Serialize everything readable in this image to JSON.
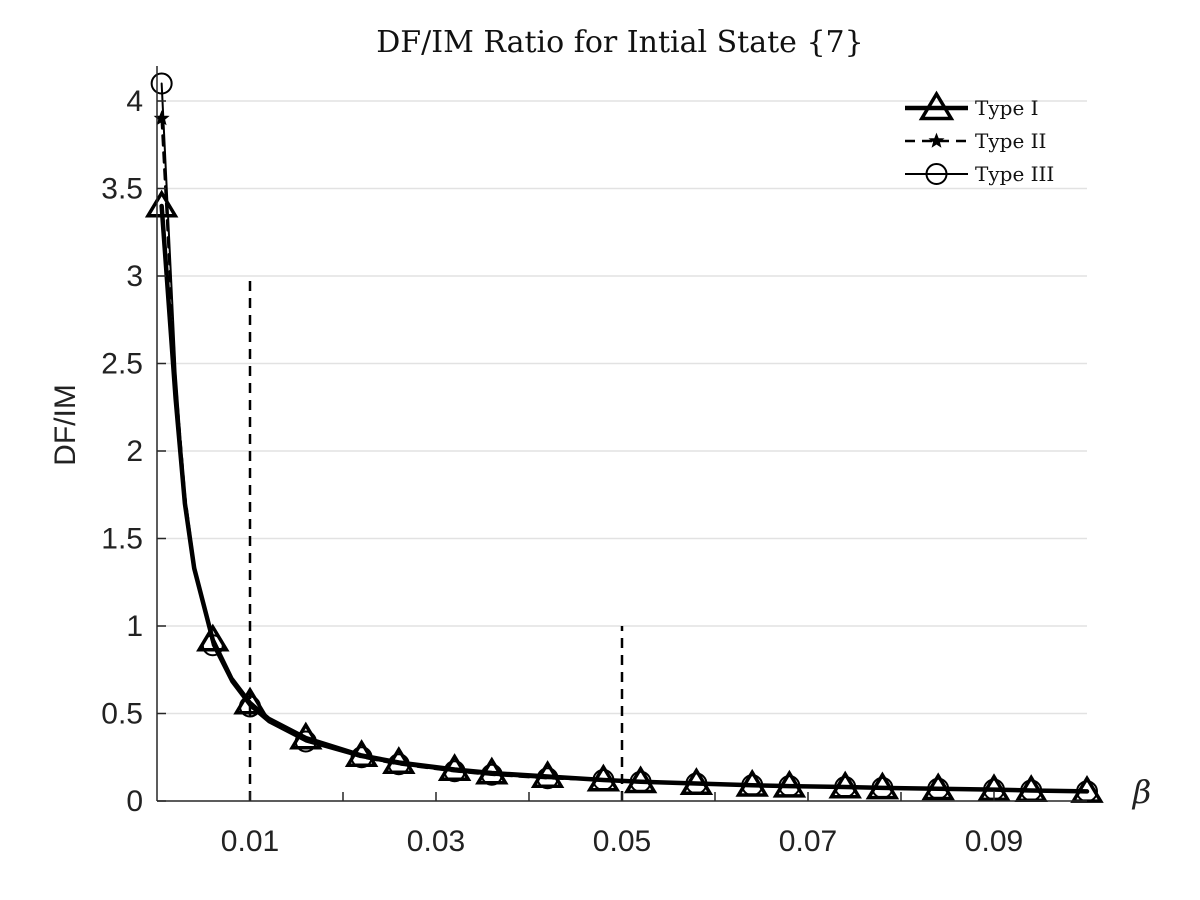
{
  "chart_data": {
    "type": "line",
    "title": "DF/IM Ratio for Intial State {7}",
    "xlabel": "β",
    "ylabel": "DF/IM",
    "xlim": [
      0,
      0.1
    ],
    "ylim": [
      0,
      4.2
    ],
    "xticks": [
      0.01,
      0.03,
      0.05,
      0.07,
      0.09
    ],
    "xtick_labels": [
      "0.01",
      "0.03",
      "0.05",
      "0.07",
      "0.09"
    ],
    "yticks": [
      0,
      0.5,
      1,
      1.5,
      2,
      2.5,
      3,
      3.5,
      4
    ],
    "ytick_labels": [
      "0",
      "0.5",
      "1",
      "1.5",
      "2",
      "2.5",
      "3",
      "3.5",
      "4"
    ],
    "grid": "horizontal",
    "legend_position": "top-right",
    "vlines": [
      {
        "x": 0.01,
        "ymax": 3.0
      },
      {
        "x": 0.05,
        "ymax": 1.0
      }
    ],
    "series": [
      {
        "name": "Type I",
        "style": "solid-thick",
        "marker": "triangle",
        "x": [
          0.0005,
          0.002,
          0.003,
          0.004,
          0.006,
          0.008,
          0.01,
          0.012,
          0.016,
          0.022,
          0.026,
          0.032,
          0.036,
          0.042,
          0.048,
          0.052,
          0.058,
          0.064,
          0.068,
          0.074,
          0.078,
          0.084,
          0.09,
          0.094,
          0.1
        ],
        "y": [
          3.4,
          2.3,
          1.7,
          1.33,
          0.92,
          0.7,
          0.56,
          0.47,
          0.36,
          0.26,
          0.22,
          0.18,
          0.16,
          0.14,
          0.12,
          0.11,
          0.1,
          0.09,
          0.085,
          0.08,
          0.075,
          0.07,
          0.065,
          0.06,
          0.055
        ],
        "marker_x": [
          0.0005,
          0.006,
          0.01,
          0.016,
          0.022,
          0.026,
          0.032,
          0.036,
          0.042,
          0.048,
          0.052,
          0.058,
          0.064,
          0.068,
          0.074,
          0.078,
          0.084,
          0.09,
          0.094,
          0.1
        ]
      },
      {
        "name": "Type II",
        "style": "dashed",
        "marker": "star",
        "x": [
          0.0005,
          0.002,
          0.003,
          0.004,
          0.006,
          0.008,
          0.01,
          0.012,
          0.016,
          0.022,
          0.026,
          0.032,
          0.036,
          0.042,
          0.048,
          0.052,
          0.058,
          0.064,
          0.068,
          0.074,
          0.078,
          0.084,
          0.09,
          0.094,
          0.1
        ],
        "y": [
          3.9,
          2.4,
          1.75,
          1.35,
          0.9,
          0.69,
          0.55,
          0.46,
          0.35,
          0.25,
          0.21,
          0.17,
          0.15,
          0.13,
          0.12,
          0.11,
          0.1,
          0.09,
          0.085,
          0.08,
          0.075,
          0.07,
          0.065,
          0.06,
          0.055
        ],
        "marker_x": [
          0.0005
        ]
      },
      {
        "name": "Type III",
        "style": "solid",
        "marker": "circle",
        "x": [
          0.0005,
          0.002,
          0.003,
          0.004,
          0.006,
          0.008,
          0.01,
          0.012,
          0.016,
          0.022,
          0.026,
          0.032,
          0.036,
          0.042,
          0.048,
          0.052,
          0.058,
          0.064,
          0.068,
          0.074,
          0.078,
          0.084,
          0.09,
          0.094,
          0.1
        ],
        "y": [
          4.1,
          2.45,
          1.72,
          1.33,
          0.89,
          0.68,
          0.54,
          0.45,
          0.34,
          0.25,
          0.21,
          0.17,
          0.15,
          0.13,
          0.12,
          0.11,
          0.1,
          0.09,
          0.085,
          0.08,
          0.075,
          0.07,
          0.065,
          0.06,
          0.055
        ],
        "marker_x": [
          0.0005,
          0.006,
          0.01,
          0.016,
          0.022,
          0.026,
          0.032,
          0.036,
          0.042,
          0.048,
          0.052,
          0.058,
          0.064,
          0.068,
          0.074,
          0.078,
          0.084,
          0.09,
          0.094,
          0.1
        ]
      }
    ]
  }
}
